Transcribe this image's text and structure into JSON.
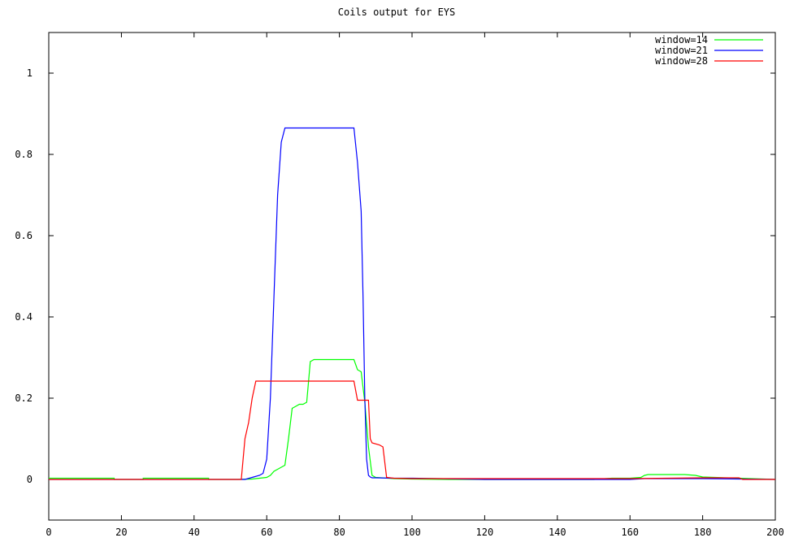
{
  "chart_data": {
    "type": "line",
    "title": "Coils output for EYS",
    "xlabel": "",
    "ylabel": "",
    "xlim": [
      0,
      200
    ],
    "ylim": [
      -0.1,
      1.1
    ],
    "xticks": [
      0,
      20,
      40,
      60,
      80,
      100,
      120,
      140,
      160,
      180,
      200
    ],
    "yticks": [
      0,
      0.2,
      0.4,
      0.6,
      0.8,
      1
    ],
    "ytick_labels": [
      "0",
      "0.2",
      "0.4",
      "0.6",
      "0.8",
      "1"
    ],
    "grid": false,
    "legend_position": "top-right",
    "series": [
      {
        "name": "window=14",
        "color": "#00ff00",
        "x": [
          0,
          18,
          18,
          26,
          26,
          44,
          44,
          52,
          56,
          58,
          60,
          61,
          62,
          63,
          64,
          65,
          66,
          67,
          68,
          69,
          70,
          71,
          72,
          73,
          74,
          76,
          78,
          80,
          82,
          84,
          85,
          86,
          87,
          88,
          89,
          90,
          95,
          100,
          110,
          120,
          130,
          140,
          150,
          155,
          160,
          163,
          164,
          165,
          170,
          175,
          178,
          180,
          190,
          200
        ],
        "y": [
          0.003,
          0.003,
          0.0,
          0.0,
          0.003,
          0.003,
          0.0,
          0.0,
          0.001,
          0.003,
          0.005,
          0.01,
          0.02,
          0.025,
          0.03,
          0.035,
          0.1,
          0.175,
          0.18,
          0.185,
          0.185,
          0.19,
          0.29,
          0.295,
          0.295,
          0.295,
          0.295,
          0.295,
          0.295,
          0.295,
          0.27,
          0.265,
          0.19,
          0.08,
          0.01,
          0.005,
          0.002,
          0.001,
          0.0,
          0.0,
          0.0,
          0.0,
          0.0,
          0.003,
          0.003,
          0.005,
          0.01,
          0.012,
          0.012,
          0.012,
          0.01,
          0.006,
          0.003,
          0.0
        ]
      },
      {
        "name": "window=21",
        "color": "#0000ff",
        "x": [
          0,
          20,
          40,
          54,
          56,
          58,
          59,
          60,
          61,
          62,
          63,
          64,
          65,
          66,
          70,
          75,
          80,
          84,
          85,
          86,
          86.5,
          87,
          87.5,
          88,
          88.5,
          89,
          90,
          95,
          100,
          107,
          120,
          140,
          160,
          164,
          180,
          200
        ],
        "y": [
          0.0,
          0.0,
          0.0,
          0.0,
          0.005,
          0.01,
          0.015,
          0.05,
          0.2,
          0.45,
          0.7,
          0.83,
          0.865,
          0.865,
          0.865,
          0.865,
          0.865,
          0.865,
          0.78,
          0.66,
          0.45,
          0.2,
          0.05,
          0.01,
          0.006,
          0.004,
          0.004,
          0.003,
          0.003,
          0.002,
          0.0,
          0.0,
          0.0,
          0.002,
          0.002,
          0.0
        ]
      },
      {
        "name": "window=28",
        "color": "#ff0000",
        "x": [
          0,
          53,
          54,
          55,
          56,
          57,
          60,
          65,
          70,
          75,
          80,
          84,
          85,
          86,
          88,
          88.5,
          89,
          91,
          92,
          93,
          95,
          100,
          110,
          120,
          140,
          160,
          180,
          190,
          191,
          200
        ],
        "y": [
          0.0,
          0.0,
          0.1,
          0.14,
          0.2,
          0.242,
          0.242,
          0.242,
          0.242,
          0.242,
          0.242,
          0.242,
          0.195,
          0.195,
          0.195,
          0.1,
          0.09,
          0.085,
          0.08,
          0.005,
          0.003,
          0.002,
          0.002,
          0.002,
          0.002,
          0.002,
          0.004,
          0.004,
          0.0,
          0.0
        ]
      }
    ]
  }
}
